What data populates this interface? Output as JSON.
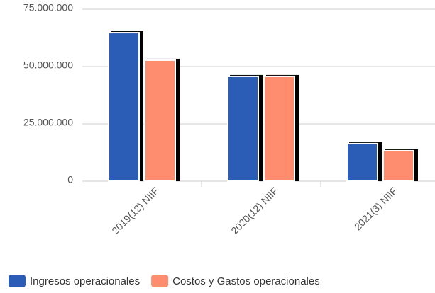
{
  "chart_data": {
    "type": "bar",
    "categories": [
      "2019(12) NIIF",
      "2020(12) NIIF",
      "2021(3) NIIF"
    ],
    "series": [
      {
        "name": "Ingresos operacionales",
        "color": "#2b5db7",
        "values": [
          64800000,
          45700000,
          16400000
        ]
      },
      {
        "name": "Costos y Gastos operacionales",
        "color": "#fe8c6f",
        "values": [
          52800000,
          45700000,
          13300000
        ]
      }
    ],
    "ylim": [
      0,
      75000000
    ],
    "yticks": [
      0,
      {
        "value": 25000000,
        "label": "25.000.000"
      },
      {
        "value": 50000000,
        "label": "50.000.000"
      },
      {
        "value": 75000000,
        "label": "75.000.000"
      }
    ],
    "grid": true
  }
}
